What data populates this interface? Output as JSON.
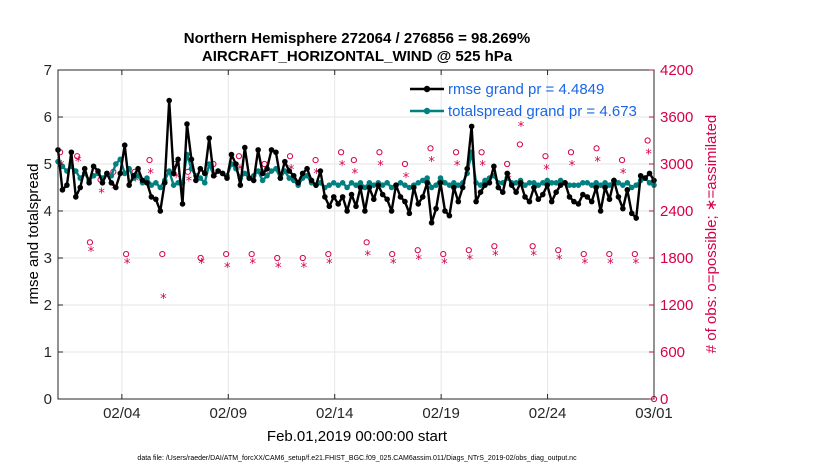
{
  "chart_data": {
    "type": "line",
    "title_line1": "Northern Hemisphere 272064 / 276856 = 98.269%",
    "title_line2": "AIRCRAFT_HORIZONTAL_WIND @ 525 hPa",
    "xlabel": "Feb.01,2019 00:00:00 start",
    "ylabel_left": "rmse and totalspread",
    "ylabel_right": "# of obs: o=possible; ∗=assimilated",
    "xlim": [
      0,
      28
    ],
    "ylim_left": [
      0,
      7
    ],
    "ylim_right": [
      0,
      4200
    ],
    "x_ticks": [
      3,
      8,
      13,
      18,
      23,
      28
    ],
    "x_tick_labels": [
      "02/04",
      "02/09",
      "02/14",
      "02/19",
      "02/24",
      "03/01"
    ],
    "y_ticks_left": [
      "0",
      "1",
      "2",
      "3",
      "4",
      "5",
      "6",
      "7"
    ],
    "y_ticks_right": [
      "0",
      "600",
      "1200",
      "1800",
      "2400",
      "3000",
      "3600",
      "4200"
    ],
    "footnote": "data file: /Users/raeder/DAI/ATM_forcXX/CAM6_setup/f.e21.FHIST_BGC.f09_025.CAM6assim.011/Diags_NTrS_2019-02/obs_diag_output.nc",
    "colors": {
      "rmse": "#000000",
      "spread": "#008080",
      "obs": "#d6004a",
      "legend_text": "#1a66e6",
      "grid": "#e6e6e6"
    },
    "series": [
      {
        "name": "rmse grand pr = 4.4849",
        "axis": "left",
        "values": [
          5.3,
          4.45,
          4.55,
          5.25,
          4.3,
          4.5,
          4.9,
          4.6,
          4.95,
          4.85,
          4.6,
          4.8,
          4.6,
          4.5,
          4.8,
          5.4,
          4.55,
          4.75,
          4.9,
          4.65,
          4.6,
          4.3,
          4.25,
          4.0,
          4.6,
          6.35,
          4.8,
          5.1,
          4.15,
          5.85,
          5.1,
          4.65,
          4.9,
          4.8,
          5.55,
          4.75,
          4.85,
          4.8,
          4.7,
          5.2,
          5.0,
          4.55,
          5.35,
          4.7,
          4.65,
          5.3,
          4.8,
          4.9,
          5.3,
          5.25,
          4.7,
          5.05,
          4.85,
          4.75,
          4.6,
          4.8,
          4.9,
          4.65,
          4.55,
          4.85,
          4.3,
          4.1,
          4.3,
          4.15,
          4.3,
          4.0,
          4.35,
          4.1,
          4.5,
          4.0,
          4.5,
          4.25,
          4.55,
          4.35,
          4.25,
          4.0,
          4.55,
          4.3,
          4.2,
          3.95,
          4.5,
          4.15,
          4.3,
          4.6,
          3.75,
          4.05,
          4.6,
          4.0,
          3.9,
          4.5,
          4.2,
          4.5,
          4.9,
          5.8,
          4.2,
          4.4,
          4.55,
          4.6,
          4.95,
          4.5,
          4.4,
          4.8,
          4.55,
          4.4,
          4.6,
          4.3,
          4.2,
          4.5,
          4.25,
          4.35,
          4.55,
          4.2,
          4.4,
          4.55,
          4.6,
          4.3,
          4.2,
          4.15,
          4.35,
          4.3,
          4.2,
          4.5,
          4.0,
          4.5,
          4.25,
          4.65,
          4.3,
          4.05,
          4.45,
          3.95,
          3.85,
          4.75,
          4.7,
          4.8,
          4.65
        ]
      },
      {
        "name": "totalspread grand pr = 4.673",
        "axis": "left",
        "values": [
          5.05,
          4.95,
          4.85,
          4.95,
          4.85,
          4.7,
          4.8,
          4.65,
          4.75,
          4.8,
          4.7,
          4.8,
          4.75,
          5.0,
          5.1,
          4.8,
          4.9,
          4.7,
          4.75,
          4.6,
          4.7,
          4.55,
          4.6,
          4.5,
          4.65,
          4.85,
          4.55,
          4.6,
          4.6,
          5.2,
          4.9,
          4.75,
          4.7,
          4.6,
          5.0,
          4.75,
          4.85,
          4.8,
          4.75,
          5.0,
          4.9,
          4.7,
          4.8,
          4.7,
          4.75,
          4.85,
          4.65,
          4.75,
          4.85,
          4.9,
          4.7,
          4.85,
          4.7,
          4.65,
          4.55,
          4.7,
          4.75,
          4.6,
          4.55,
          4.6,
          4.5,
          4.55,
          4.6,
          4.55,
          4.6,
          4.5,
          4.6,
          4.55,
          4.6,
          4.5,
          4.6,
          4.55,
          4.6,
          4.55,
          4.6,
          4.5,
          4.55,
          4.6,
          4.55,
          4.5,
          4.55,
          4.6,
          4.65,
          4.7,
          4.5,
          4.55,
          4.7,
          4.6,
          4.55,
          4.6,
          4.55,
          4.6,
          4.8,
          5.25,
          4.6,
          4.55,
          4.65,
          4.7,
          4.75,
          4.6,
          4.6,
          4.7,
          4.6,
          4.6,
          4.65,
          4.55,
          4.6,
          4.6,
          4.55,
          4.6,
          4.65,
          4.6,
          4.6,
          4.65,
          4.6,
          4.55,
          4.55,
          4.55,
          4.6,
          4.6,
          4.55,
          4.6,
          4.55,
          4.6,
          4.55,
          4.65,
          4.6,
          4.55,
          4.6,
          4.5,
          4.55,
          4.65,
          4.7,
          4.6,
          4.55
        ]
      },
      {
        "name": "possible",
        "axis": "right",
        "marker": "o",
        "points": [
          [
            0.1,
            3150
          ],
          [
            0.9,
            3100
          ],
          [
            1.5,
            2000
          ],
          [
            2.0,
            2800
          ],
          [
            2.6,
            2900
          ],
          [
            3.2,
            1850
          ],
          [
            3.6,
            2900
          ],
          [
            4.3,
            3050
          ],
          [
            4.9,
            1850
          ],
          [
            5.5,
            3000
          ],
          [
            6.1,
            2900
          ],
          [
            6.7,
            1800
          ],
          [
            7.3,
            3000
          ],
          [
            7.9,
            1850
          ],
          [
            8.5,
            3100
          ],
          [
            9.1,
            1850
          ],
          [
            9.7,
            3000
          ],
          [
            10.3,
            1800
          ],
          [
            10.9,
            3100
          ],
          [
            11.5,
            1800
          ],
          [
            12.1,
            3050
          ],
          [
            12.7,
            1850
          ],
          [
            13.3,
            3150
          ],
          [
            13.9,
            3050
          ],
          [
            14.5,
            2000
          ],
          [
            15.1,
            3150
          ],
          [
            15.7,
            1850
          ],
          [
            16.3,
            3000
          ],
          [
            16.9,
            1900
          ],
          [
            17.5,
            3200
          ],
          [
            18.1,
            1850
          ],
          [
            18.7,
            3150
          ],
          [
            19.3,
            1900
          ],
          [
            19.9,
            3150
          ],
          [
            20.5,
            1950
          ],
          [
            21.1,
            3000
          ],
          [
            21.7,
            3250
          ],
          [
            22.3,
            1950
          ],
          [
            22.9,
            3100
          ],
          [
            23.5,
            1900
          ],
          [
            24.1,
            3150
          ],
          [
            24.7,
            1850
          ],
          [
            25.3,
            3200
          ],
          [
            25.9,
            1850
          ],
          [
            26.5,
            3050
          ],
          [
            27.1,
            1850
          ],
          [
            27.7,
            3300
          ],
          [
            28.0,
            0
          ]
        ]
      },
      {
        "name": "assimilated",
        "axis": "right",
        "marker": "*",
        "points": [
          [
            0.15,
            3000
          ],
          [
            0.95,
            3050
          ],
          [
            1.55,
            1900
          ],
          [
            2.05,
            2650
          ],
          [
            2.65,
            2700
          ],
          [
            3.25,
            1750
          ],
          [
            3.65,
            2800
          ],
          [
            4.35,
            2900
          ],
          [
            4.95,
            1300
          ],
          [
            5.55,
            2850
          ],
          [
            6.15,
            2800
          ],
          [
            6.75,
            1750
          ],
          [
            7.35,
            2850
          ],
          [
            7.95,
            1700
          ],
          [
            8.55,
            2950
          ],
          [
            9.15,
            1750
          ],
          [
            9.75,
            2900
          ],
          [
            10.35,
            1700
          ],
          [
            10.95,
            2950
          ],
          [
            11.55,
            1700
          ],
          [
            12.15,
            2900
          ],
          [
            12.75,
            1750
          ],
          [
            13.35,
            3000
          ],
          [
            13.95,
            2900
          ],
          [
            14.55,
            1850
          ],
          [
            15.15,
            3000
          ],
          [
            15.75,
            1750
          ],
          [
            16.35,
            2850
          ],
          [
            16.95,
            1800
          ],
          [
            17.55,
            3050
          ],
          [
            18.15,
            1750
          ],
          [
            18.75,
            3000
          ],
          [
            19.35,
            1800
          ],
          [
            19.95,
            3000
          ],
          [
            20.55,
            1850
          ],
          [
            21.15,
            2850
          ],
          [
            21.75,
            3500
          ],
          [
            22.35,
            1850
          ],
          [
            22.95,
            2950
          ],
          [
            23.55,
            1800
          ],
          [
            24.15,
            3000
          ],
          [
            24.75,
            1750
          ],
          [
            25.35,
            3050
          ],
          [
            25.95,
            1750
          ],
          [
            26.55,
            2900
          ],
          [
            27.15,
            1750
          ],
          [
            27.75,
            3150
          ]
        ]
      }
    ]
  }
}
